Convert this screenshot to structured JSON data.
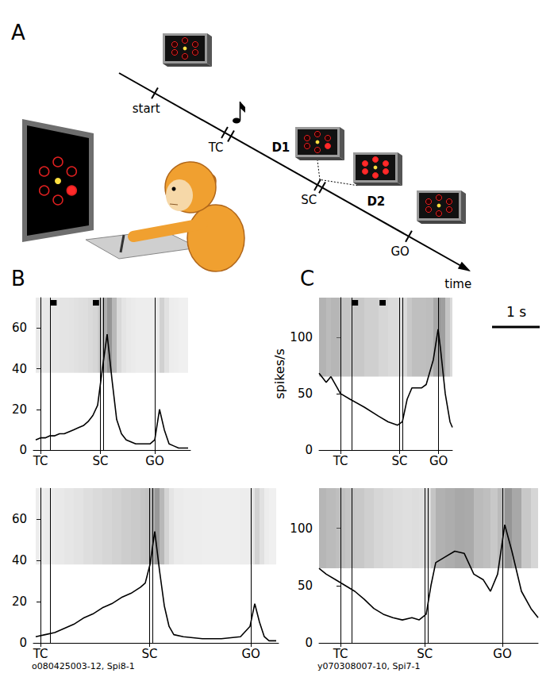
{
  "panel_labels": [
    "A",
    "B",
    "C"
  ],
  "task_diagram": {
    "events": [
      {
        "label": "start"
      },
      {
        "label": "TC"
      },
      {
        "label": "SC"
      },
      {
        "label": "GO"
      }
    ],
    "delays": [
      "D1",
      "D2"
    ],
    "axis_label": "time"
  },
  "scale_bar": {
    "value": 1,
    "label": "1 s"
  },
  "chart_data": [
    {
      "type": "line",
      "color": "#000000",
      "x": [
        -0.1,
        0,
        0.1,
        0.2,
        0.3,
        0.4,
        0.5,
        0.6,
        0.7,
        0.8,
        0.9,
        1.0,
        1.1,
        1.2,
        1.3,
        1.4,
        1.5,
        1.6,
        1.7,
        1.8,
        1.9,
        2.0,
        2.1,
        2.2,
        2.3,
        2.4,
        2.5,
        2.6,
        2.7,
        2.8,
        2.9,
        3.0,
        3.1
      ],
      "values": [
        5,
        6,
        6,
        7,
        7,
        8,
        8,
        9,
        10,
        11,
        12,
        14,
        17,
        22,
        40,
        57,
        35,
        15,
        8,
        5,
        4,
        3,
        3,
        3,
        3,
        5,
        20,
        10,
        3,
        2,
        1,
        1,
        1
      ],
      "xlim": [
        -0.15,
        3.15
      ],
      "ylim": [
        0,
        75
      ],
      "xticks": [
        {
          "value": 0,
          "label": "TC"
        },
        {
          "value": 1.26,
          "label": "SC"
        },
        {
          "value": 2.4,
          "label": "GO"
        }
      ],
      "yticks": [
        0,
        20,
        40,
        60
      ],
      "events": [
        0,
        0.21,
        1.26,
        1.32,
        2.4
      ],
      "raster": {
        "ylim": [
          38,
          75
        ]
      },
      "windows": [
        [
          0.21,
          0.34
        ],
        [
          1.1,
          1.23
        ]
      ]
    },
    {
      "type": "line",
      "color": "#000000",
      "x": [
        -0.1,
        0.1,
        0.3,
        0.5,
        0.7,
        0.9,
        1.1,
        1.3,
        1.5,
        1.7,
        1.9,
        2.1,
        2.2,
        2.3,
        2.4,
        2.5,
        2.6,
        2.7,
        2.8,
        3.0,
        3.4,
        3.8,
        4.2,
        4.4,
        4.5,
        4.6,
        4.7,
        4.8,
        4.95
      ],
      "values": [
        3,
        4,
        5,
        7,
        9,
        12,
        14,
        17,
        19,
        22,
        24,
        27,
        29,
        38,
        54,
        35,
        18,
        8,
        4,
        3,
        2,
        2,
        3,
        8,
        19,
        10,
        3,
        1,
        1
      ],
      "xlim": [
        -0.15,
        5.0
      ],
      "ylim": [
        0,
        75
      ],
      "xticks": [
        {
          "value": 0,
          "label": "TC"
        },
        {
          "value": 2.29,
          "label": "SC"
        },
        {
          "value": 4.42,
          "label": "GO"
        }
      ],
      "yticks": [
        0,
        20,
        40,
        60
      ],
      "events": [
        0,
        0.21,
        2.29,
        2.35,
        4.42
      ],
      "raster": {
        "ylim": [
          38,
          75
        ]
      },
      "annotation": "o080425003-12, Spi8-1"
    },
    {
      "type": "line",
      "color": "#000000",
      "x": [
        -0.45,
        -0.3,
        -0.2,
        0,
        0.2,
        0.5,
        0.8,
        1.0,
        1.2,
        1.3,
        1.4,
        1.5,
        1.7,
        1.8,
        1.95,
        2.05,
        2.1,
        2.2,
        2.3,
        2.35
      ],
      "values": [
        68,
        60,
        65,
        50,
        45,
        38,
        30,
        25,
        22,
        25,
        45,
        55,
        55,
        58,
        80,
        107,
        90,
        50,
        25,
        20
      ],
      "xlim": [
        -0.45,
        2.35
      ],
      "ylim": [
        0,
        135
      ],
      "xticks": [
        {
          "value": 0,
          "label": "TC"
        },
        {
          "value": 1.24,
          "label": "SC"
        },
        {
          "value": 2.06,
          "label": "GO"
        }
      ],
      "yticks": [
        0,
        50,
        100
      ],
      "events": [
        0,
        0.23,
        1.24,
        1.3,
        2.06
      ],
      "raster": {
        "ylim": [
          65,
          135
        ]
      },
      "windows": [
        [
          0.23,
          0.37
        ],
        [
          0.82,
          0.95
        ]
      ],
      "ylabel": "spikes/s"
    },
    {
      "type": "line",
      "color": "#000000",
      "x": [
        -0.45,
        -0.3,
        -0.1,
        0.1,
        0.3,
        0.5,
        0.7,
        0.9,
        1.1,
        1.3,
        1.5,
        1.65,
        1.8,
        1.9,
        2.0,
        2.2,
        2.4,
        2.6,
        2.8,
        3.0,
        3.15,
        3.3,
        3.45,
        3.6,
        3.8,
        4.0,
        4.15
      ],
      "values": [
        65,
        60,
        55,
        50,
        45,
        38,
        30,
        25,
        22,
        20,
        22,
        20,
        25,
        50,
        70,
        75,
        80,
        78,
        60,
        55,
        45,
        60,
        103,
        80,
        45,
        30,
        22
      ],
      "xlim": [
        -0.45,
        4.15
      ],
      "ylim": [
        0,
        135
      ],
      "xticks": [
        {
          "value": 0,
          "label": "TC"
        },
        {
          "value": 1.77,
          "label": "SC"
        },
        {
          "value": 3.4,
          "label": "GO"
        }
      ],
      "yticks": [
        0,
        50,
        100
      ],
      "events": [
        0,
        0.23,
        1.77,
        1.84,
        3.4
      ],
      "raster": {
        "ylim": [
          65,
          135
        ]
      },
      "annotation": "y070308007-10, Spi7-1"
    }
  ]
}
